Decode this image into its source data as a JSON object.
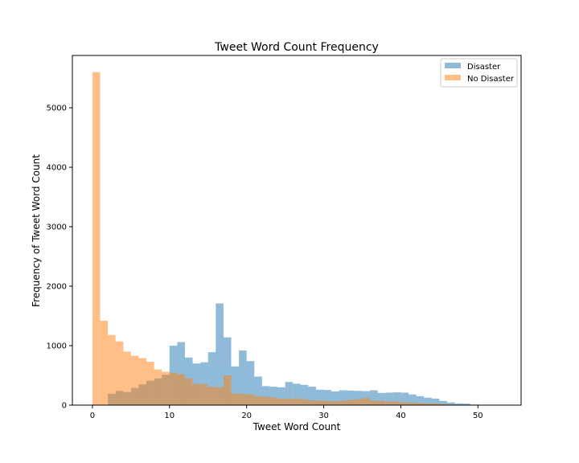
{
  "chart_data": {
    "type": "bar",
    "title": "Tweet Word Count Frequency",
    "xlabel": "Tweet Word Count",
    "ylabel": "Frequency of Tweet Word Count",
    "xlim": [
      -2.6,
      55.6
    ],
    "ylim": [
      0,
      5880
    ],
    "xticks": [
      0,
      10,
      20,
      30,
      40,
      50
    ],
    "yticks": [
      0,
      1000,
      2000,
      3000,
      4000,
      5000
    ],
    "bin_start": 0,
    "bin_width": 1,
    "legend_position": "upper right",
    "series": [
      {
        "name": "Disaster",
        "color": "#1f77b4",
        "opacity": 0.5,
        "values": [
          0,
          0,
          190,
          240,
          220,
          290,
          350,
          410,
          450,
          510,
          1000,
          1060,
          800,
          700,
          720,
          890,
          1710,
          1140,
          650,
          920,
          740,
          480,
          320,
          310,
          300,
          390,
          360,
          340,
          310,
          260,
          255,
          230,
          250,
          245,
          240,
          235,
          250,
          205,
          210,
          215,
          210,
          180,
          150,
          125,
          110,
          70,
          45,
          30,
          25,
          10,
          5,
          0,
          0
        ]
      },
      {
        "name": "No Disaster",
        "color": "#ff7f0e",
        "opacity": 0.5,
        "values": [
          5600,
          1420,
          1180,
          1070,
          900,
          830,
          790,
          730,
          600,
          560,
          545,
          520,
          450,
          360,
          355,
          310,
          300,
          500,
          195,
          190,
          180,
          150,
          140,
          130,
          110,
          105,
          115,
          95,
          80,
          75,
          70,
          65,
          75,
          90,
          100,
          120,
          75,
          70,
          60,
          60,
          45,
          40,
          35,
          30,
          25,
          20,
          10,
          8,
          5,
          3,
          2,
          0,
          0
        ]
      }
    ]
  }
}
